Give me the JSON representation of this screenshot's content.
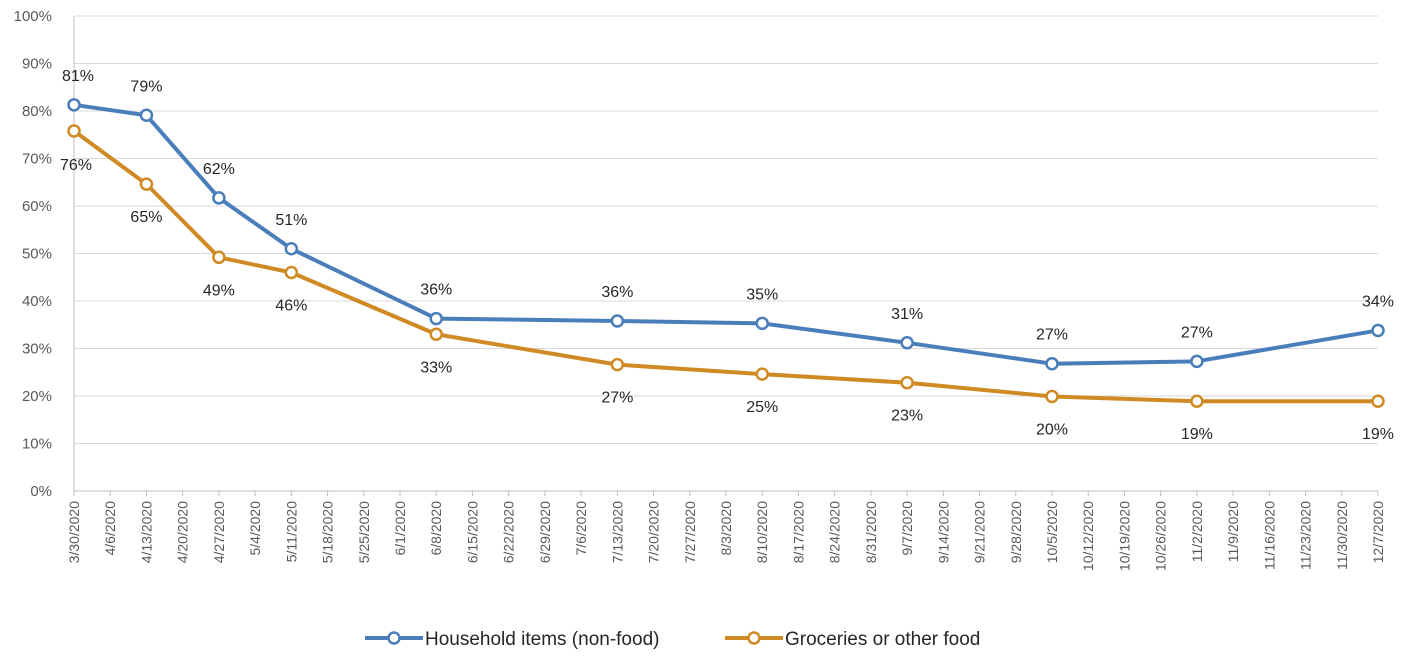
{
  "chart_data": {
    "type": "line",
    "title": "",
    "xlabel": "",
    "ylabel": "",
    "ylim": [
      0,
      100
    ],
    "y_unit": "%",
    "y_ticks": [
      0,
      10,
      20,
      30,
      40,
      50,
      60,
      70,
      80,
      90,
      100
    ],
    "y_tick_labels": [
      "0%",
      "10%",
      "20%",
      "30%",
      "40%",
      "50%",
      "60%",
      "70%",
      "80%",
      "90%",
      "100%"
    ],
    "grid": true,
    "legend_position": "bottom",
    "categories": [
      "3/30/2020",
      "4/6/2020",
      "4/13/2020",
      "4/20/2020",
      "4/27/2020",
      "5/4/2020",
      "5/11/2020",
      "5/18/2020",
      "5/25/2020",
      "6/1/2020",
      "6/8/2020",
      "6/15/2020",
      "6/22/2020",
      "6/29/2020",
      "7/6/2020",
      "7/13/2020",
      "7/20/2020",
      "7/27/2020",
      "8/3/2020",
      "8/10/2020",
      "8/17/2020",
      "8/24/2020",
      "8/31/2020",
      "9/7/2020",
      "9/14/2020",
      "9/21/2020",
      "9/28/2020",
      "10/5/2020",
      "10/12/2020",
      "10/19/2020",
      "10/26/2020",
      "11/2/2020",
      "11/9/2020",
      "11/16/2020",
      "11/23/2020",
      "11/30/2020",
      "12/7/2020"
    ],
    "series": [
      {
        "name": "Household items (non-food)",
        "color": "#4a7ebb",
        "points": [
          {
            "x": "3/30/2020",
            "y": 81.3,
            "label": "81%"
          },
          {
            "x": "4/13/2020",
            "y": 79.1,
            "label": "79%"
          },
          {
            "x": "4/27/2020",
            "y": 61.7,
            "label": "62%"
          },
          {
            "x": "5/11/2020",
            "y": 51.0,
            "label": "51%"
          },
          {
            "x": "6/8/2020",
            "y": 36.3,
            "label": "36%"
          },
          {
            "x": "7/13/2020",
            "y": 35.8,
            "label": "36%"
          },
          {
            "x": "8/10/2020",
            "y": 35.3,
            "label": "35%"
          },
          {
            "x": "9/7/2020",
            "y": 31.2,
            "label": "31%"
          },
          {
            "x": "10/5/2020",
            "y": 26.8,
            "label": "27%"
          },
          {
            "x": "11/2/2020",
            "y": 27.3,
            "label": "27%"
          },
          {
            "x": "12/7/2020",
            "y": 33.8,
            "label": "34%"
          }
        ]
      },
      {
        "name": "Groceries or other food",
        "color": "#d08a24",
        "points": [
          {
            "x": "3/30/2020",
            "y": 75.8,
            "label": "76%"
          },
          {
            "x": "4/13/2020",
            "y": 64.6,
            "label": "65%"
          },
          {
            "x": "4/27/2020",
            "y": 49.2,
            "label": "49%"
          },
          {
            "x": "5/11/2020",
            "y": 46.0,
            "label": "46%"
          },
          {
            "x": "6/8/2020",
            "y": 33.0,
            "label": "33%"
          },
          {
            "x": "7/13/2020",
            "y": 26.6,
            "label": "27%"
          },
          {
            "x": "8/10/2020",
            "y": 24.6,
            "label": "25%"
          },
          {
            "x": "9/7/2020",
            "y": 22.8,
            "label": "23%"
          },
          {
            "x": "10/5/2020",
            "y": 19.9,
            "label": "20%"
          },
          {
            "x": "11/2/2020",
            "y": 18.9,
            "label": "19%"
          },
          {
            "x": "12/7/2020",
            "y": 18.9,
            "label": "19%"
          }
        ]
      }
    ]
  }
}
